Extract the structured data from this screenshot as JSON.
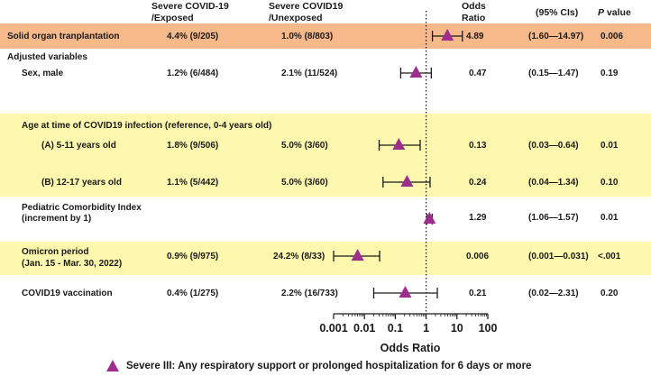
{
  "header": {
    "exposed_line1": "Severe  COVID-19",
    "exposed_line2": "/Exposed",
    "unexposed_line1": "Severe  COVID19",
    "unexposed_line2": "/Unexposed",
    "or_line1": "Odds",
    "or_line2": "Ratio",
    "ci": "(95% CIs)",
    "p_italic": "P",
    "p_rest": " value"
  },
  "rows": {
    "solid_organ": {
      "label": "Solid organ tranplantation",
      "exposed": "4.4% (9/205)",
      "unexposed": "1.0% (8/803)",
      "or": "4.89",
      "ci": "(1.60—14.97)",
      "p": "0.006"
    },
    "adjusted_heading": "Adjusted variables",
    "sex": {
      "label": "Sex, male",
      "exposed": "1.2% (6/484)",
      "unexposed": "2.1% (11/524)",
      "or": "0.47",
      "ci": "(0.15—1.47)",
      "p": "0.19"
    },
    "age_heading": "Age at time of COVID19 infection (reference, 0-4 years old)",
    "age_a": {
      "label": "(A) 5-11 years old",
      "exposed": "1.8% (9/506)",
      "unexposed": "5.0% (3/60)",
      "or": "0.13",
      "ci": "(0.03—0.64)",
      "p": "0.01"
    },
    "age_b": {
      "label": "(B) 12-17 years old",
      "exposed": "1.1% (5/442)",
      "unexposed": "5.0% (3/60)",
      "or": "0.24",
      "ci": "(0.04—1.34)",
      "p": "0.10"
    },
    "pci": {
      "label_line1": "Pediatric Comorbidity Index",
      "label_line2": "(increment by 1)",
      "or": "1.29",
      "ci": "(1.06—1.57)",
      "p": "0.01"
    },
    "omicron": {
      "label_line1": "Omicron period",
      "label_line2": "(Jan. 15 - Mar. 30, 2022)",
      "exposed": "0.9% (9/975)",
      "unexposed": "24.2% (8/33)",
      "or": "0.006",
      "ci": "(0.001—0.031)",
      "p": "<.001"
    },
    "vaccination": {
      "label": "COVID19 vaccination",
      "exposed": "0.4% (1/275)",
      "unexposed": "2.2% (16/733)",
      "or": "0.21",
      "ci": "(0.02—2.31)",
      "p": "0.20"
    }
  },
  "chart_data": {
    "type": "forest",
    "title": "",
    "xlabel": "Odds Ratio",
    "xscale": "log",
    "xlim": [
      0.001,
      100
    ],
    "ticks": [
      "0.001",
      "0.01",
      "0.1",
      "1",
      "10",
      "100"
    ],
    "reference_line": 1,
    "marker_color": "#9e2e8c",
    "series": [
      {
        "name": "Solid organ tranplantation",
        "or": 4.89,
        "lo": 1.6,
        "hi": 14.97
      },
      {
        "name": "Sex, male",
        "or": 0.47,
        "lo": 0.15,
        "hi": 1.47
      },
      {
        "name": "(A) 5-11 years old",
        "or": 0.13,
        "lo": 0.03,
        "hi": 0.64
      },
      {
        "name": "(B) 12-17 years old",
        "or": 0.24,
        "lo": 0.04,
        "hi": 1.34
      },
      {
        "name": "Pediatric Comorbidity Index",
        "or": 1.29,
        "lo": 1.06,
        "hi": 1.57
      },
      {
        "name": "Omicron period",
        "or": 0.006,
        "lo": 0.001,
        "hi": 0.031
      },
      {
        "name": "COVID19 vaccination",
        "or": 0.21,
        "lo": 0.02,
        "hi": 2.31
      }
    ],
    "legend": "Severe III: Any respiratory support or prolonged hospitalization for 6 days or more"
  }
}
